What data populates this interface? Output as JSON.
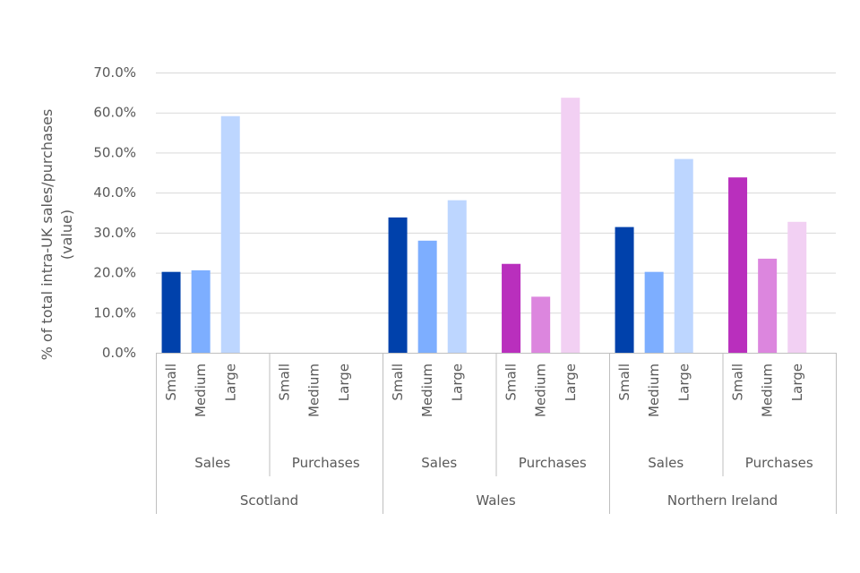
{
  "chart_data": {
    "type": "bar",
    "ylabel": "% of total intra-UK sales/purchases (value)",
    "ylim": [
      0,
      70
    ],
    "yticks": [
      "0.0%",
      "10.0%",
      "20.0%",
      "30.0%",
      "40.0%",
      "50.0%",
      "60.0%",
      "70.0%"
    ],
    "grid": true,
    "legend": "none",
    "colors": {
      "sales": {
        "Small": "#0041ab",
        "Medium": "#7daeff",
        "Large": "#bdd6ff"
      },
      "purchases": {
        "Small": "#b92fbd",
        "Medium": "#dc86de",
        "Large": "#f2d0f3"
      },
      "grid": "#d9d9d9",
      "axis": "#bfbfbf",
      "text": "#595959"
    },
    "regions": [
      {
        "name": "Scotland",
        "groups": [
          {
            "name": "Sales",
            "kind": "sales",
            "bars": [
              {
                "size": "Small",
                "value": 20.2
              },
              {
                "size": "Medium",
                "value": 20.6
              },
              {
                "size": "Large",
                "value": 59.1
              }
            ]
          },
          {
            "name": "Purchases",
            "kind": "purchases",
            "bars": [
              {
                "size": "Small",
                "value": null
              },
              {
                "size": "Medium",
                "value": null
              },
              {
                "size": "Large",
                "value": null
              }
            ]
          }
        ]
      },
      {
        "name": "Wales",
        "groups": [
          {
            "name": "Sales",
            "kind": "sales",
            "bars": [
              {
                "size": "Small",
                "value": 33.8
              },
              {
                "size": "Medium",
                "value": 28.0
              },
              {
                "size": "Large",
                "value": 38.1
              }
            ]
          },
          {
            "name": "Purchases",
            "kind": "purchases",
            "bars": [
              {
                "size": "Small",
                "value": 22.2
              },
              {
                "size": "Medium",
                "value": 14.0
              },
              {
                "size": "Large",
                "value": 63.7
              }
            ]
          }
        ]
      },
      {
        "name": "Northern Ireland",
        "groups": [
          {
            "name": "Sales",
            "kind": "sales",
            "bars": [
              {
                "size": "Small",
                "value": 31.4
              },
              {
                "size": "Medium",
                "value": 20.2
              },
              {
                "size": "Large",
                "value": 48.4
              }
            ]
          },
          {
            "name": "Purchases",
            "kind": "purchases",
            "bars": [
              {
                "size": "Small",
                "value": 43.8
              },
              {
                "size": "Medium",
                "value": 23.5
              },
              {
                "size": "Large",
                "value": 32.7
              }
            ]
          }
        ]
      }
    ]
  }
}
